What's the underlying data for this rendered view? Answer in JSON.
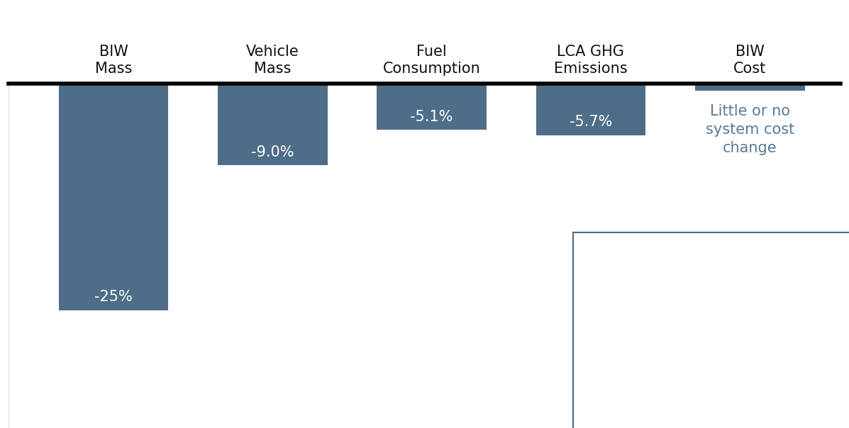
{
  "chart_data": {
    "type": "bar",
    "categories": [
      "BIW\nMass",
      "Vehicle\nMass",
      "Fuel\nConsumption",
      "LCA GHG\nEmissions",
      "BIW\nCost"
    ],
    "values": [
      -25,
      -9.0,
      -5.1,
      -5.7,
      -0.8
    ],
    "value_labels": [
      "-25%",
      "-9.0%",
      "-5.1%",
      "-5.7%",
      null
    ],
    "data_labels": true,
    "annotations": [
      "Little or no\nsystem cost\nchange"
    ],
    "color": "#4d6d88",
    "ylim": [
      -38,
      0
    ],
    "yticks": [],
    "tick_labels": "x",
    "grid": false
  }
}
